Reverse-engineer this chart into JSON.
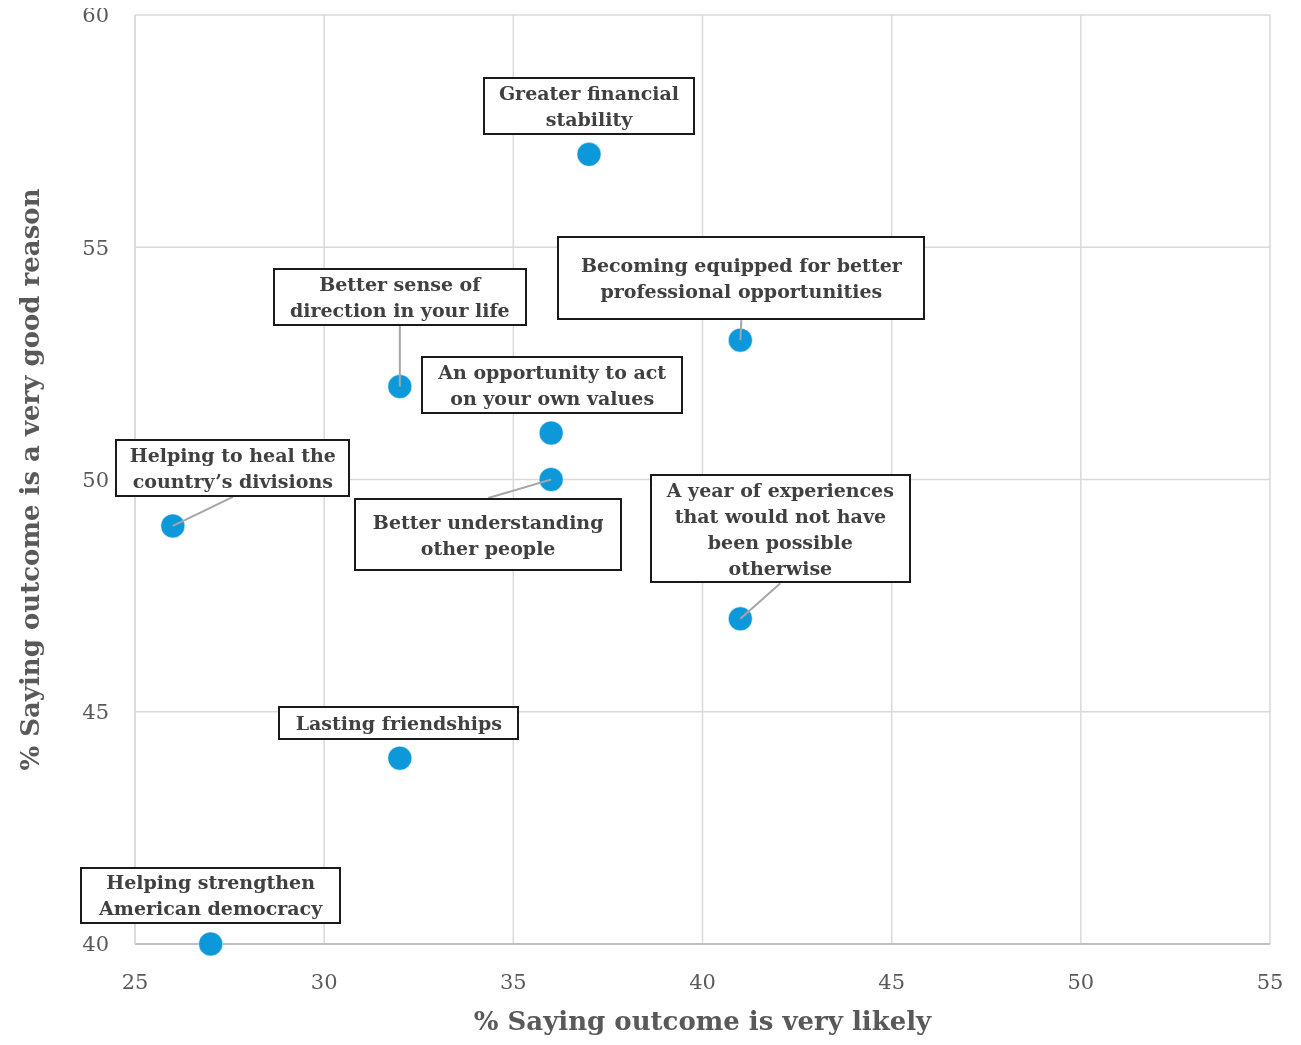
{
  "chart_data": {
    "type": "scatter",
    "xlabel": "% Saying outcome is very likely",
    "ylabel": "% Saying outcome is a very good reason",
    "x": [
      37,
      41,
      32,
      36,
      36,
      26,
      41,
      32,
      27
    ],
    "values": [
      57,
      53,
      52,
      51,
      50,
      49,
      47,
      44,
      40
    ],
    "color": "#0d98da",
    "marker": "circle",
    "xlim": [
      25,
      55
    ],
    "xticks": [
      25,
      30,
      35,
      40,
      45,
      50,
      55
    ],
    "ylim": [
      40,
      60
    ],
    "yticks": [
      40,
      45,
      50,
      55,
      60
    ],
    "grid": true,
    "annotations": [
      {
        "text": "Greater financial stability",
        "x": 37,
        "y": 57
      },
      {
        "text": "Becoming equipped for better professional opportunities",
        "x": 41,
        "y": 53
      },
      {
        "text": "Better sense of direction in your life",
        "x": 32,
        "y": 52
      },
      {
        "text": "An opportunity to act on your own values",
        "x": 36,
        "y": 51
      },
      {
        "text": "Better understanding other people",
        "x": 36,
        "y": 50
      },
      {
        "text": "Helping to heal the country’s divisions",
        "x": 26,
        "y": 49
      },
      {
        "text": "A year of experiences that would not have been possible otherwise",
        "x": 41,
        "y": 47
      },
      {
        "text": "Lasting friendships",
        "x": 32,
        "y": 44
      },
      {
        "text": "Helping strengthen American democracy",
        "x": 27,
        "y": 40
      }
    ]
  }
}
